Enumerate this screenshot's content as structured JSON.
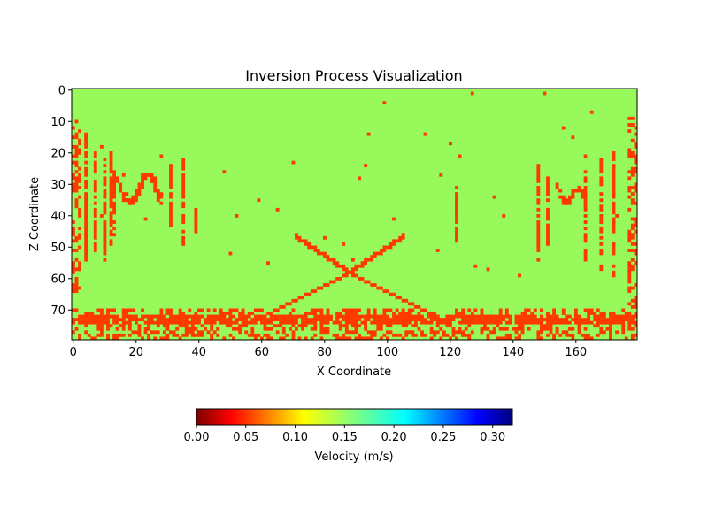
{
  "chart_data": {
    "type": "heatmap",
    "title": "Inversion Process Visualization",
    "xlabel": "X Coordinate",
    "ylabel": "Z Coordinate",
    "xlim": [
      0,
      180
    ],
    "zlim": [
      0,
      80
    ],
    "x_ticks": [
      "0",
      "20",
      "40",
      "60",
      "80",
      "100",
      "120",
      "140",
      "160"
    ],
    "z_ticks": [
      "0",
      "10",
      "20",
      "30",
      "40",
      "50",
      "60",
      "70"
    ],
    "background_value": 0.14,
    "anomaly_value": 0.05,
    "background_color": "#98fa5a",
    "anomaly_color": "#ff3a00",
    "colorbar": {
      "label": "Velocity (m/s)",
      "range": [
        0.0,
        0.32
      ],
      "colormap": "jet_r",
      "ticks": [
        "0.00",
        "0.05",
        "0.10",
        "0.15",
        "0.20",
        "0.25",
        "0.30"
      ]
    },
    "anomaly_features": [
      {
        "name": "left edge band",
        "x": [
          0,
          3
        ],
        "z": [
          10,
          65
        ]
      },
      {
        "name": "left vertical streaks",
        "x": [
          4,
          14
        ],
        "z": [
          12,
          55
        ]
      },
      {
        "name": "left arc",
        "x": [
          14,
          28
        ],
        "z": [
          24,
          48
        ]
      },
      {
        "name": "left mid streaks",
        "x": [
          30,
          36
        ],
        "z": [
          22,
          50
        ]
      },
      {
        "name": "center X pattern",
        "x": [
          62,
          112
        ],
        "z": [
          45,
          80
        ]
      },
      {
        "name": "streak near x=123",
        "x": [
          121,
          123
        ],
        "z": [
          30,
          52
        ]
      },
      {
        "name": "right streaks",
        "x": [
          145,
          175
        ],
        "z": [
          22,
          60
        ]
      },
      {
        "name": "right edge band",
        "x": [
          176,
          180
        ],
        "z": [
          8,
          70
        ]
      },
      {
        "name": "bottom layer",
        "x": [
          0,
          180
        ],
        "z": [
          70,
          80
        ]
      }
    ]
  }
}
